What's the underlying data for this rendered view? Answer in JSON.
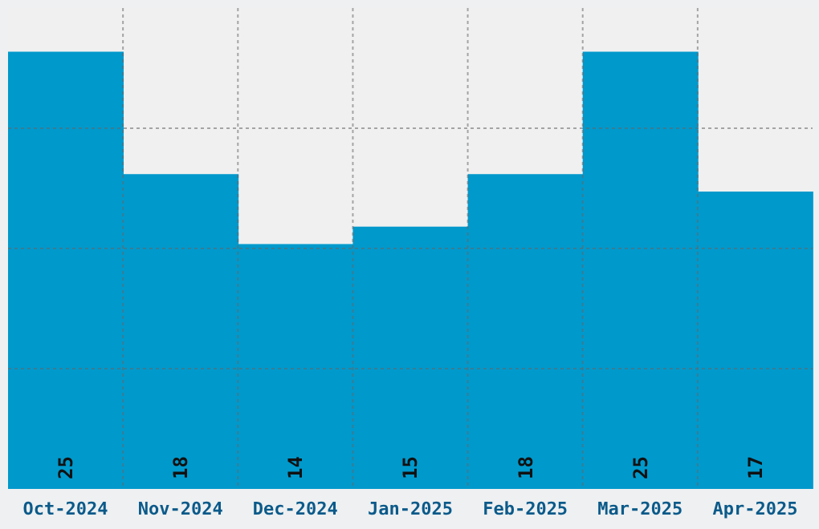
{
  "chart_data": {
    "type": "bar",
    "categories": [
      "Oct-2024",
      "Nov-2024",
      "Dec-2024",
      "Jan-2025",
      "Feb-2025",
      "Mar-2025",
      "Apr-2025"
    ],
    "values": [
      25,
      18,
      14,
      15,
      18,
      25,
      17
    ],
    "color": "#0099cc",
    "ylim": [
      0,
      27.5
    ],
    "tick_labels": "x",
    "grid": true,
    "data_labels": true
  }
}
